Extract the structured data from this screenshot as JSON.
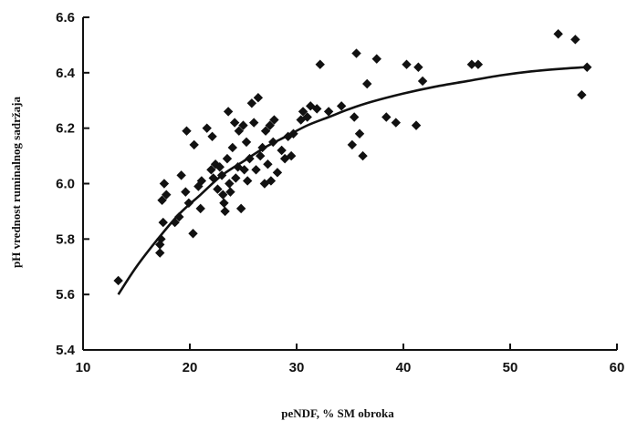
{
  "chart_data": {
    "type": "scatter",
    "xlabel": "peNDF, % SM obroka",
    "ylabel": "pH vrednost ruminalnog sadržaja",
    "xlim": [
      10,
      60
    ],
    "ylim": [
      5.4,
      6.6
    ],
    "xticks": [
      "10",
      "20",
      "30",
      "40",
      "50",
      "60"
    ],
    "yticks": [
      "5.4",
      "5.6",
      "5.8",
      "6.0",
      "6.2",
      "6.4",
      "6.6"
    ],
    "grid": false,
    "marker": "diamond",
    "color": "#111111",
    "series": [
      {
        "points": [
          [
            13.3,
            5.65
          ],
          [
            17.2,
            5.75
          ],
          [
            17.3,
            5.8
          ],
          [
            17.5,
            5.86
          ],
          [
            17.4,
            5.94
          ],
          [
            17.6,
            6.0
          ],
          [
            17.8,
            5.96
          ],
          [
            17.2,
            5.78
          ],
          [
            18.6,
            5.86
          ],
          [
            19.0,
            5.88
          ],
          [
            19.2,
            6.03
          ],
          [
            19.6,
            5.97
          ],
          [
            19.7,
            6.19
          ],
          [
            19.9,
            5.93
          ],
          [
            20.3,
            5.82
          ],
          [
            20.4,
            6.14
          ],
          [
            20.8,
            5.99
          ],
          [
            21.0,
            5.91
          ],
          [
            21.1,
            6.01
          ],
          [
            21.6,
            6.2
          ],
          [
            22.0,
            6.05
          ],
          [
            22.1,
            6.17
          ],
          [
            22.2,
            6.02
          ],
          [
            22.4,
            6.07
          ],
          [
            22.6,
            5.98
          ],
          [
            22.8,
            6.06
          ],
          [
            23.0,
            6.03
          ],
          [
            23.1,
            5.96
          ],
          [
            23.2,
            5.93
          ],
          [
            23.3,
            5.9
          ],
          [
            23.5,
            6.09
          ],
          [
            23.6,
            6.26
          ],
          [
            23.7,
            6.0
          ],
          [
            23.8,
            5.97
          ],
          [
            24.0,
            6.13
          ],
          [
            24.2,
            6.22
          ],
          [
            24.3,
            6.02
          ],
          [
            24.5,
            6.06
          ],
          [
            24.6,
            6.19
          ],
          [
            24.8,
            5.91
          ],
          [
            25.0,
            6.21
          ],
          [
            25.1,
            6.05
          ],
          [
            25.3,
            6.15
          ],
          [
            25.4,
            6.01
          ],
          [
            25.6,
            6.09
          ],
          [
            25.8,
            6.29
          ],
          [
            26.0,
            6.22
          ],
          [
            26.2,
            6.05
          ],
          [
            26.4,
            6.31
          ],
          [
            26.6,
            6.1
          ],
          [
            26.8,
            6.13
          ],
          [
            27.0,
            6.0
          ],
          [
            27.1,
            6.19
          ],
          [
            27.3,
            6.07
          ],
          [
            27.5,
            6.21
          ],
          [
            27.6,
            6.01
          ],
          [
            27.8,
            6.15
          ],
          [
            27.9,
            6.23
          ],
          [
            28.2,
            6.04
          ],
          [
            28.6,
            6.12
          ],
          [
            28.9,
            6.09
          ],
          [
            29.2,
            6.17
          ],
          [
            29.5,
            6.1
          ],
          [
            29.7,
            6.18
          ],
          [
            30.4,
            6.23
          ],
          [
            30.6,
            6.26
          ],
          [
            31.0,
            6.24
          ],
          [
            31.3,
            6.28
          ],
          [
            31.9,
            6.27
          ],
          [
            32.2,
            6.43
          ],
          [
            33.0,
            6.26
          ],
          [
            34.2,
            6.28
          ],
          [
            35.2,
            6.14
          ],
          [
            35.4,
            6.24
          ],
          [
            35.6,
            6.47
          ],
          [
            35.9,
            6.18
          ],
          [
            36.2,
            6.1
          ],
          [
            36.6,
            6.36
          ],
          [
            37.5,
            6.45
          ],
          [
            38.4,
            6.24
          ],
          [
            39.3,
            6.22
          ],
          [
            40.3,
            6.43
          ],
          [
            41.2,
            6.21
          ],
          [
            41.4,
            6.42
          ],
          [
            41.8,
            6.37
          ],
          [
            46.4,
            6.43
          ],
          [
            47.0,
            6.43
          ],
          [
            54.5,
            6.54
          ],
          [
            56.1,
            6.52
          ],
          [
            56.7,
            6.32
          ],
          [
            57.2,
            6.42
          ]
        ]
      }
    ],
    "fit_curve": {
      "x": [
        13.3,
        15,
        17,
        19,
        21,
        23,
        25,
        27,
        29,
        31,
        33,
        35,
        37,
        40,
        43,
        46,
        49,
        52,
        55,
        57
      ],
      "y": [
        5.6,
        5.7,
        5.8,
        5.89,
        5.96,
        6.03,
        6.08,
        6.13,
        6.17,
        6.21,
        6.24,
        6.27,
        6.295,
        6.325,
        6.35,
        6.37,
        6.39,
        6.405,
        6.415,
        6.42
      ]
    }
  }
}
